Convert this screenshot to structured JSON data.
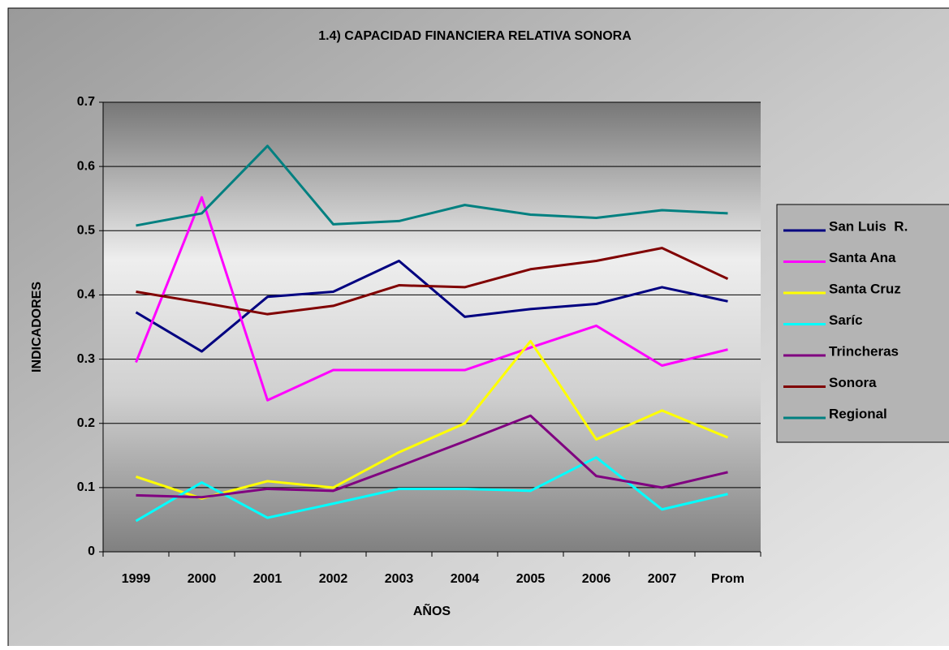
{
  "chart_data": {
    "type": "line",
    "title": "1.4) CAPACIDAD FINANCIERA RELATIVA SONORA",
    "x_label": "AÑOS",
    "y_label": "INDICADORES",
    "categories": [
      "1999",
      "2000",
      "2001",
      "2002",
      "2003",
      "2004",
      "2005",
      "2006",
      "2007",
      "Prom"
    ],
    "series": [
      {
        "name": "San Luis  R.",
        "color": "#000080",
        "values": [
          0.373,
          0.312,
          0.397,
          0.405,
          0.453,
          0.366,
          0.378,
          0.386,
          0.412,
          0.39
        ]
      },
      {
        "name": "Santa Ana",
        "color": "#ff00ff",
        "values": [
          0.295,
          0.552,
          0.236,
          0.283,
          0.283,
          0.283,
          0.318,
          0.352,
          0.29,
          0.315
        ]
      },
      {
        "name": "Santa Cruz",
        "color": "#ffff00",
        "values": [
          0.117,
          0.083,
          0.11,
          0.1,
          0.155,
          0.2,
          0.328,
          0.175,
          0.22,
          0.178
        ]
      },
      {
        "name": "Saríc",
        "color": "#00ffff",
        "values": [
          0.048,
          0.108,
          0.053,
          0.075,
          0.098,
          0.098,
          0.095,
          0.147,
          0.066,
          0.09
        ]
      },
      {
        "name": "Trincheras",
        "color": "#800080",
        "values": [
          0.088,
          0.085,
          0.098,
          0.095,
          0.133,
          0.172,
          0.212,
          0.118,
          0.1,
          0.124
        ]
      },
      {
        "name": "Sonora",
        "color": "#800000",
        "values": [
          0.405,
          0.388,
          0.37,
          0.383,
          0.415,
          0.412,
          0.44,
          0.453,
          0.473,
          0.425
        ]
      },
      {
        "name": "Regional",
        "color": "#008080",
        "values": [
          0.508,
          0.527,
          0.632,
          0.51,
          0.515,
          0.54,
          0.525,
          0.52,
          0.532,
          0.527
        ]
      }
    ],
    "ylim": [
      0,
      0.7
    ],
    "yticks": [
      0,
      0.1,
      0.2,
      0.3,
      0.4,
      0.5,
      0.6,
      0.7
    ],
    "grid": true,
    "legend": "right"
  }
}
